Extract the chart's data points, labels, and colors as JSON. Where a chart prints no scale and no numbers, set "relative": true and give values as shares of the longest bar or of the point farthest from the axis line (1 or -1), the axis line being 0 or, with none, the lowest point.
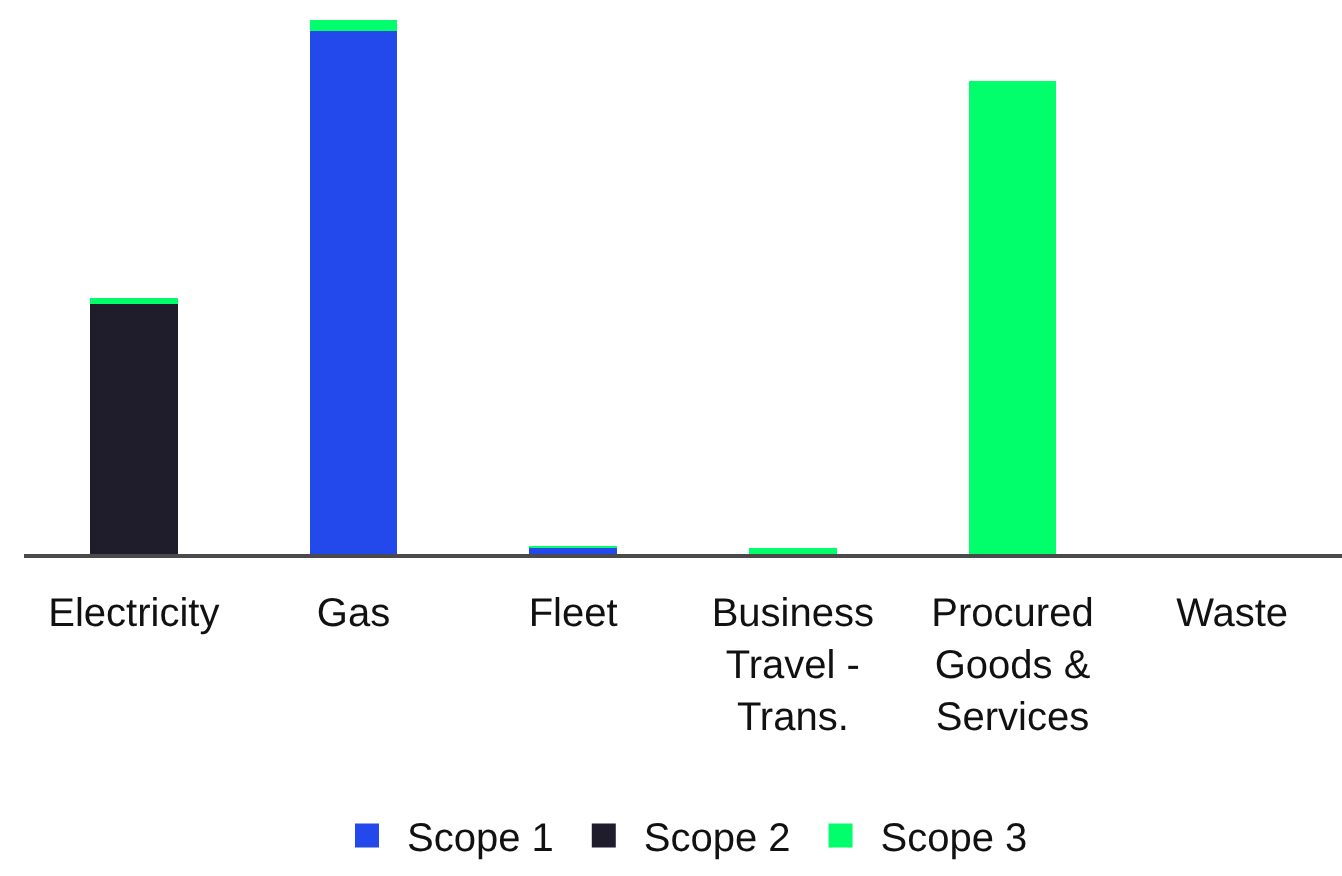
{
  "chart_data": {
    "type": "bar",
    "stacked": true,
    "relative": true,
    "legend": "bottom",
    "categories": [
      "Electricity",
      "Gas",
      "Fleet",
      "Business Travel - Trans.",
      "Procured Goods & Services",
      "Waste"
    ],
    "series": [
      {
        "name": "Scope 1",
        "color": "#2349ec",
        "values": [
          0,
          0.98,
          0.011,
          0,
          0,
          0
        ]
      },
      {
        "name": "Scope 2",
        "color": "#1f1d2c",
        "values": [
          0.469,
          0,
          0,
          0,
          0,
          0
        ]
      },
      {
        "name": "Scope 3",
        "color": "#00ff6b",
        "values": [
          0.011,
          0.02,
          0.004,
          0.011,
          0.886,
          0
        ]
      }
    ]
  }
}
